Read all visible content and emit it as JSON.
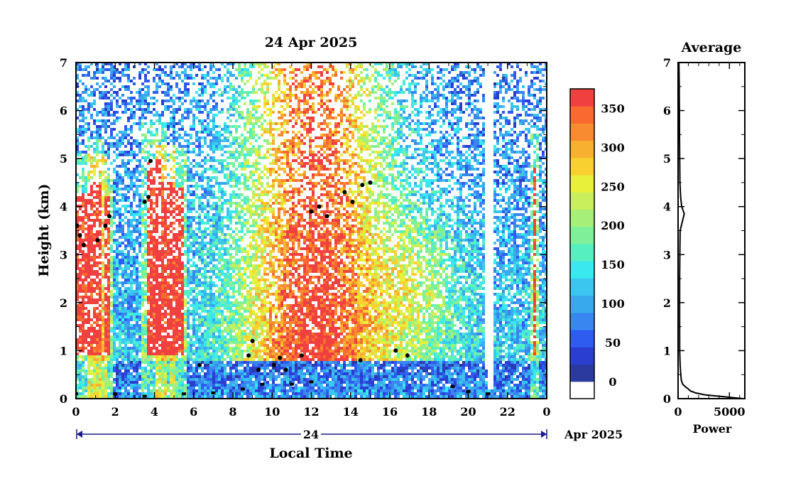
{
  "chart_data": [
    {
      "type": "heatmap",
      "title": "24 Apr 2025",
      "xlabel": "Local Time",
      "ylabel": "Height (km)",
      "xlim": [
        0,
        24
      ],
      "ylim": [
        0,
        7
      ],
      "x_ticks": [
        "0",
        "2",
        "4",
        "6",
        "8",
        "10",
        "12",
        "14",
        "16",
        "18",
        "20",
        "22",
        "0"
      ],
      "y_ticks": [
        "0",
        "1",
        "2",
        "3",
        "4",
        "5",
        "6",
        "7"
      ],
      "date_bar": {
        "day_label": "24",
        "month_label": "Apr 2025"
      },
      "grid": false,
      "colorbar": {
        "range": [
          0,
          375
        ],
        "tick_labels": [
          "0",
          "50",
          "100",
          "150",
          "200",
          "250",
          "300",
          "350"
        ],
        "colors": [
          "#ffffff",
          "#2b3a9e",
          "#2a3fd0",
          "#2e5cf0",
          "#3a86f0",
          "#39a9ee",
          "#3ac6ee",
          "#3ae8f0",
          "#56f0c0",
          "#7ef09a",
          "#a6f07a",
          "#c9f05a",
          "#e8f03a",
          "#f8d030",
          "#f8b030",
          "#f88a30",
          "#f86a30",
          "#f04040"
        ]
      },
      "cloud_base_series": [
        {
          "time": 0.05,
          "height": 3.6
        },
        {
          "time": 0.2,
          "height": 3.4
        },
        {
          "time": 0.4,
          "height": 3.2
        },
        {
          "time": 1.1,
          "height": 3.3
        },
        {
          "time": 1.5,
          "height": 3.6
        },
        {
          "time": 1.7,
          "height": 3.8
        },
        {
          "time": 3.5,
          "height": 4.1
        },
        {
          "time": 3.7,
          "height": 4.2
        },
        {
          "time": 3.8,
          "height": 4.95
        },
        {
          "time": 6.3,
          "height": 0.7
        },
        {
          "time": 8.8,
          "height": 0.9
        },
        {
          "time": 9.0,
          "height": 1.2
        },
        {
          "time": 9.3,
          "height": 0.6
        },
        {
          "time": 10.1,
          "height": 0.7
        },
        {
          "time": 10.4,
          "height": 0.85
        },
        {
          "time": 10.7,
          "height": 0.6
        },
        {
          "time": 11.5,
          "height": 0.9
        },
        {
          "time": 12.0,
          "height": 3.9
        },
        {
          "time": 12.4,
          "height": 4.0
        },
        {
          "time": 12.8,
          "height": 3.8
        },
        {
          "time": 13.7,
          "height": 4.3
        },
        {
          "time": 14.1,
          "height": 4.1
        },
        {
          "time": 14.6,
          "height": 4.45
        },
        {
          "time": 15.0,
          "height": 4.5
        },
        {
          "time": 14.5,
          "height": 0.8
        },
        {
          "time": 16.3,
          "height": 1.0
        },
        {
          "time": 16.9,
          "height": 0.9
        }
      ],
      "mixing_layer_series": [
        {
          "time": 0.0,
          "height": 0.1
        },
        {
          "time": 2.0,
          "height": 0.1
        },
        {
          "time": 3.5,
          "height": 0.05
        },
        {
          "time": 5.5,
          "height": 0.1
        },
        {
          "time": 7.0,
          "height": 0.12
        },
        {
          "time": 8.5,
          "height": 0.2
        },
        {
          "time": 9.5,
          "height": 0.3
        },
        {
          "time": 11.0,
          "height": 0.3
        },
        {
          "time": 12.0,
          "height": 0.35
        },
        {
          "time": 19.2,
          "height": 0.25
        },
        {
          "time": 20.0,
          "height": 0.15
        },
        {
          "time": 21.0,
          "height": 0.1
        }
      ]
    },
    {
      "type": "line",
      "title": "Average",
      "xlabel": "Power",
      "ylabel": "",
      "xlim": [
        0,
        6500
      ],
      "ylim": [
        0,
        7
      ],
      "x_ticks": [
        "0",
        "5000"
      ],
      "y_ticks": [
        "0",
        "1",
        "2",
        "3",
        "4",
        "5",
        "6",
        "7"
      ],
      "series": [
        {
          "x": [
            6300,
            4000,
            2600,
            1700,
            1200,
            1000,
            700,
            450,
            320,
            260,
            200,
            160,
            150,
            150,
            170,
            200,
            600,
            350,
            250,
            180,
            160,
            140,
            130,
            120,
            110,
            100,
            90,
            80
          ],
          "y": [
            0.0,
            0.05,
            0.08,
            0.12,
            0.16,
            0.2,
            0.25,
            0.3,
            0.38,
            0.5,
            0.7,
            1.0,
            1.5,
            2.5,
            3.0,
            3.5,
            3.85,
            4.0,
            4.2,
            4.5,
            5.0,
            5.5,
            6.0,
            6.3,
            6.6,
            6.8,
            6.9,
            7.0
          ]
        }
      ]
    }
  ]
}
